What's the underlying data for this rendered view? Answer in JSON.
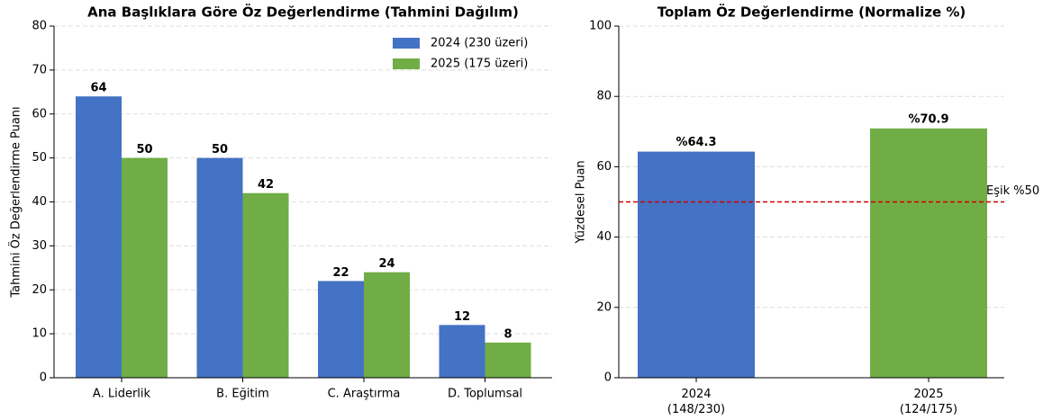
{
  "chart_data": [
    {
      "type": "grouped_bar",
      "title": "Ana Başlıklara Göre Öz Değerlendirme (Tahmini Dağılım)",
      "y_label": "Tahmini Öz Değerlendirme Puanı",
      "categories": [
        "A. Liderlik",
        "B. Eğitim",
        "C. Araştırma",
        "D. Toplumsal"
      ],
      "series": [
        {
          "name": "2024 (230 üzeri)",
          "color": "#4472c4",
          "values": [
            64,
            50,
            22,
            12
          ]
        },
        {
          "name": "2025 (175 üzeri)",
          "color": "#70ad47",
          "values": [
            50,
            42,
            24,
            8
          ]
        }
      ],
      "ylim": [
        0,
        80
      ],
      "yticks": [
        0,
        10,
        20,
        30,
        40,
        50,
        60,
        70,
        80
      ],
      "grid": true,
      "legend": "upper right"
    },
    {
      "type": "bar",
      "title": "Toplam Öz Değerlendirme (Normalize %)",
      "y_label": "Yüzdesel Puan",
      "categories": [
        "2024\n(148/230)",
        "2025\n(124/175)"
      ],
      "values": [
        64.3,
        70.9
      ],
      "value_labels": [
        "%64.3",
        "%70.9"
      ],
      "colors": [
        "#4472c4",
        "#70ad47"
      ],
      "ylim": [
        0,
        100
      ],
      "yticks": [
        0,
        20,
        40,
        60,
        80,
        100
      ],
      "grid": true,
      "threshold": {
        "value": 50,
        "label": "Eşik %50",
        "color": "#cc0000"
      }
    }
  ]
}
